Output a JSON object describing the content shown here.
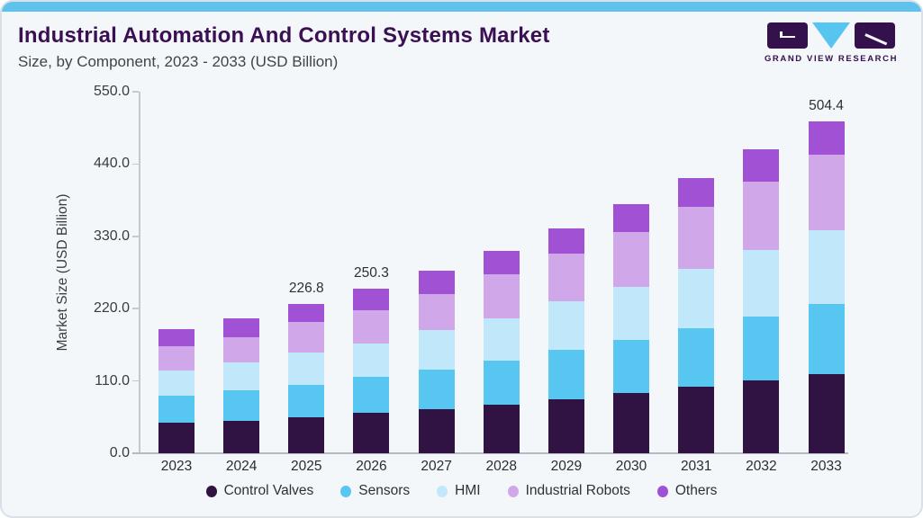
{
  "page": {
    "title": "Industrial Automation And Control Systems Market",
    "subtitle": "Size, by Component, 2023 - 2033 (USD Billion)",
    "brand": {
      "name": "GRAND VIEW RESEARCH"
    },
    "colors": {
      "top_strip": "#5ec2ec",
      "title": "#3b1053",
      "card_background": "#f3f7fa",
      "logo_purple": "#34104d",
      "logo_blue": "#56c5f0"
    }
  },
  "chart_data": {
    "type": "bar",
    "stacked": true,
    "title": "Industrial Automation And Control Systems Market",
    "subtitle": "Size, by Component, 2023 - 2033 (USD Billion)",
    "xlabel": "",
    "ylabel": "Market Size (USD Billion)",
    "ylim": [
      0,
      550
    ],
    "yticks": [
      "0.0",
      "110.0",
      "220.0",
      "330.0",
      "440.0",
      "550.0"
    ],
    "grid": false,
    "legend_position": "bottom",
    "categories": [
      "2023",
      "2024",
      "2025",
      "2026",
      "2027",
      "2028",
      "2029",
      "2030",
      "2031",
      "2032",
      "2033"
    ],
    "series": [
      {
        "name": "Control Valves",
        "color": "#301243",
        "values": [
          46.0,
          49.2,
          55.3,
          61.2,
          66.5,
          74.0,
          82.5,
          91.3,
          100.6,
          110.5,
          120.2
        ]
      },
      {
        "name": "Sensors",
        "color": "#57c6f1",
        "values": [
          42.0,
          47.0,
          49.3,
          55.0,
          60.8,
          66.6,
          74.6,
          80.5,
          88.9,
          97.7,
          106.6
        ]
      },
      {
        "name": "HMI",
        "color": "#c1e8fa",
        "values": [
          38.0,
          41.5,
          48.5,
          50.7,
          59.9,
          65.3,
          74.7,
          81.7,
          90.6,
          100.9,
          112.4
        ]
      },
      {
        "name": "Industrial Robots",
        "color": "#d0a8ea",
        "values": [
          37.0,
          39.0,
          46.2,
          50.1,
          55.6,
          66.0,
          71.9,
          82.6,
          94.3,
          104.3,
          114.6
        ]
      },
      {
        "name": "Others",
        "color": "#a151d3",
        "values": [
          25.2,
          29.2,
          27.5,
          33.3,
          34.7,
          36.2,
          38.2,
          42.2,
          44.7,
          48.4,
          50.6
        ]
      }
    ],
    "totals": [
      188.2,
      205.9,
      226.8,
      250.3,
      277.5,
      308.1,
      341.9,
      378.3,
      419.1,
      461.8,
      504.4
    ],
    "total_labels": {
      "2025": "226.8",
      "2026": "250.3",
      "2033": "504.4"
    }
  }
}
